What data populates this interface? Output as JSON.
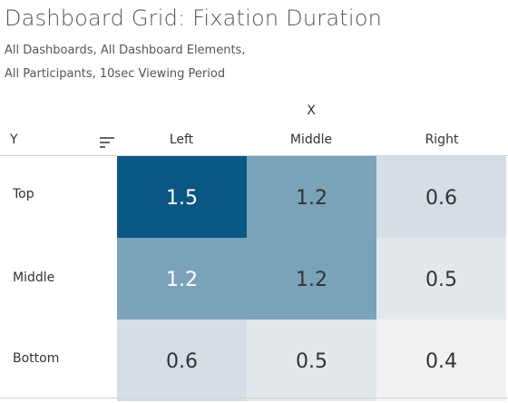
{
  "header": {
    "title": "Dashboard Grid: Fixation Duration",
    "subtitle_line1": "All Dashboards, All Dashboard Elements,",
    "subtitle_line2": "All Participants, 10sec Viewing Period"
  },
  "sort_icon": "sort-descending-icon",
  "colors": {
    "high": "#0b5784",
    "mid": "#7aa3b9",
    "low": "#f2f2f2",
    "text_light": "#ffffff",
    "text_dark": "#333333"
  },
  "chart_data": {
    "type": "heatmap",
    "x_axis_title": "X",
    "y_axis_title": "Y",
    "columns": [
      "Left",
      "Middle",
      "Right"
    ],
    "rows": [
      "Top",
      "Middle",
      "Bottom"
    ],
    "values": [
      [
        1.5,
        1.2,
        0.6
      ],
      [
        1.2,
        1.2,
        0.5
      ],
      [
        0.6,
        0.5,
        0.4
      ]
    ]
  }
}
